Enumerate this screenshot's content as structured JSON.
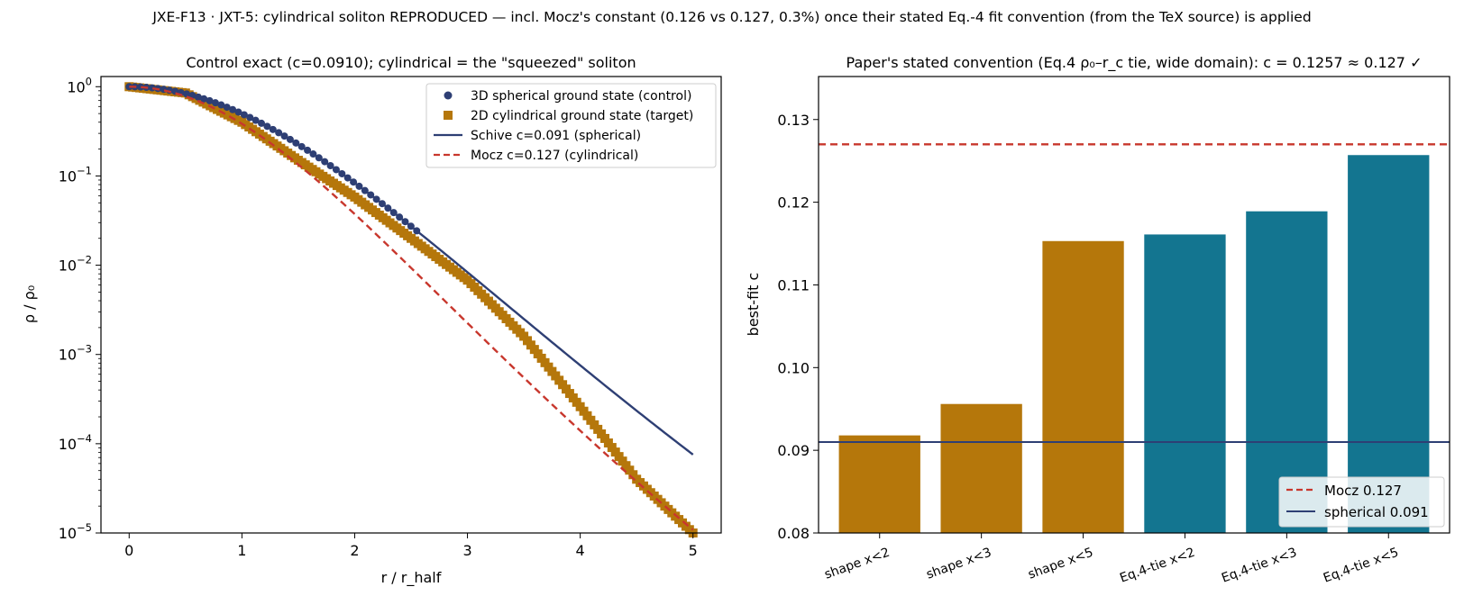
{
  "figure": {
    "suptitle": "JXE-F13 · JXT-5: cylindrical soliton REPRODUCED — incl. Mocz's constant (0.126 vs 0.127, 0.3%) once their stated Eq.-4 fit convention (from the TeX source) is applied"
  },
  "chart_data": [
    {
      "type": "line",
      "title": "Control exact (c=0.0910); cylindrical = the \"squeezed\" soliton",
      "xlabel": "r / r_half",
      "ylabel": "ρ / ρ₀",
      "xlim": [
        -0.25,
        5.25
      ],
      "ylim": [
        1e-05,
        1.3
      ],
      "yscale": "log",
      "xticks": [
        "0",
        "1",
        "2",
        "3",
        "4",
        "5"
      ],
      "yticks": [
        {
          "base": "10",
          "exp": "0"
        },
        {
          "base": "10",
          "exp": "−1"
        },
        {
          "base": "10",
          "exp": "−2"
        },
        {
          "base": "10",
          "exp": "−3"
        },
        {
          "base": "10",
          "exp": "−4"
        },
        {
          "base": "10",
          "exp": "−5"
        }
      ],
      "legend_position": "top-right",
      "series": [
        {
          "name": "3D spherical ground state (control)",
          "marker": "circle",
          "color": "#2e3f74",
          "x_range": [
            0,
            2.55
          ],
          "model": "schive",
          "c": 0.091
        },
        {
          "name": "2D cylindrical ground state (target)",
          "marker": "square",
          "color": "#b5770b",
          "x": [
            0,
            0.5,
            1,
            1.5,
            2,
            2.5,
            3,
            3.5,
            4,
            4.5,
            5
          ],
          "y": [
            1.0,
            0.85,
            0.4,
            0.15,
            0.058,
            0.02,
            0.0068,
            0.0016,
            0.00026,
            4e-05,
            1e-05
          ]
        },
        {
          "name": "Schive c=0.091 (spherical)",
          "style": "solid",
          "color": "#2e3f74",
          "x_range": [
            0,
            5
          ],
          "model": "schive",
          "c": 0.091
        },
        {
          "name": "Mocz c=0.127 (cylindrical)",
          "style": "dashed",
          "color": "#c8372d",
          "x_range": [
            0,
            5
          ],
          "model": "schive",
          "c": 0.127
        }
      ]
    },
    {
      "type": "bar",
      "title": "Paper's stated convention (Eq.4 ρ₀–r_c tie, wide domain): c = 0.1257 ≈ 0.127 ✓",
      "xlabel": "",
      "ylabel": "best-fit c",
      "ylim": [
        0.08,
        0.1352
      ],
      "yticks": [
        "0.08",
        "0.09",
        "0.10",
        "0.11",
        "0.12",
        "0.13"
      ],
      "categories": [
        "shape x<2",
        "shape x<3",
        "shape x<5",
        "Eq.4-tie x<2",
        "Eq.4-tie x<3",
        "Eq.4-tie x<5"
      ],
      "values": [
        0.0918,
        0.0956,
        0.1153,
        0.1161,
        0.1189,
        0.1257
      ],
      "bar_colors": [
        "#b5770b",
        "#b5770b",
        "#b5770b",
        "#137590",
        "#137590",
        "#137590"
      ],
      "reference_lines": [
        {
          "name": "Mocz 0.127",
          "value": 0.127,
          "style": "dashed",
          "color": "#c8372d"
        },
        {
          "name": "spherical 0.091",
          "value": 0.091,
          "style": "solid",
          "color": "#2e3f74"
        }
      ],
      "legend_position": "lower-right"
    }
  ]
}
